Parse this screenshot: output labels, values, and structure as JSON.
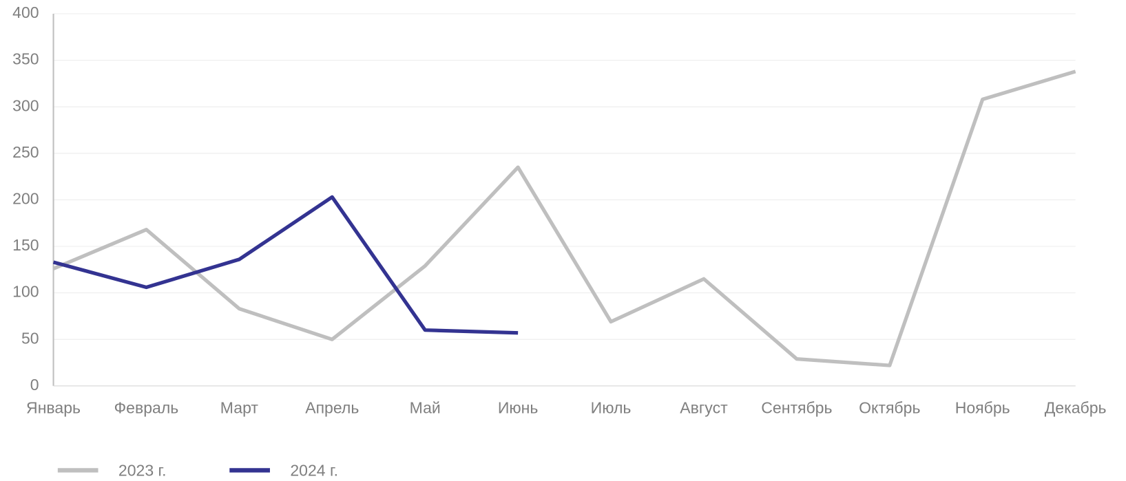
{
  "chart_data": {
    "type": "line",
    "categories": [
      "Январь",
      "Февраль",
      "Март",
      "Апрель",
      "Май",
      "Июнь",
      "Июль",
      "Август",
      "Сентябрь",
      "Октябрь",
      "Ноябрь",
      "Декабрь"
    ],
    "series": [
      {
        "name": "2023 г.",
        "color": "#bfbfbf",
        "values": [
          126,
          168,
          83,
          50,
          129,
          235,
          69,
          115,
          29,
          22,
          308,
          338
        ]
      },
      {
        "name": "2024 г.",
        "color": "#333391",
        "values": [
          133,
          106,
          136,
          203,
          60,
          57,
          null,
          null,
          null,
          null,
          null,
          null
        ]
      }
    ],
    "ylim": [
      0,
      400
    ],
    "yticks": [
      0,
      50,
      100,
      150,
      200,
      250,
      300,
      350,
      400
    ],
    "grid": true,
    "legend": "bottom"
  }
}
